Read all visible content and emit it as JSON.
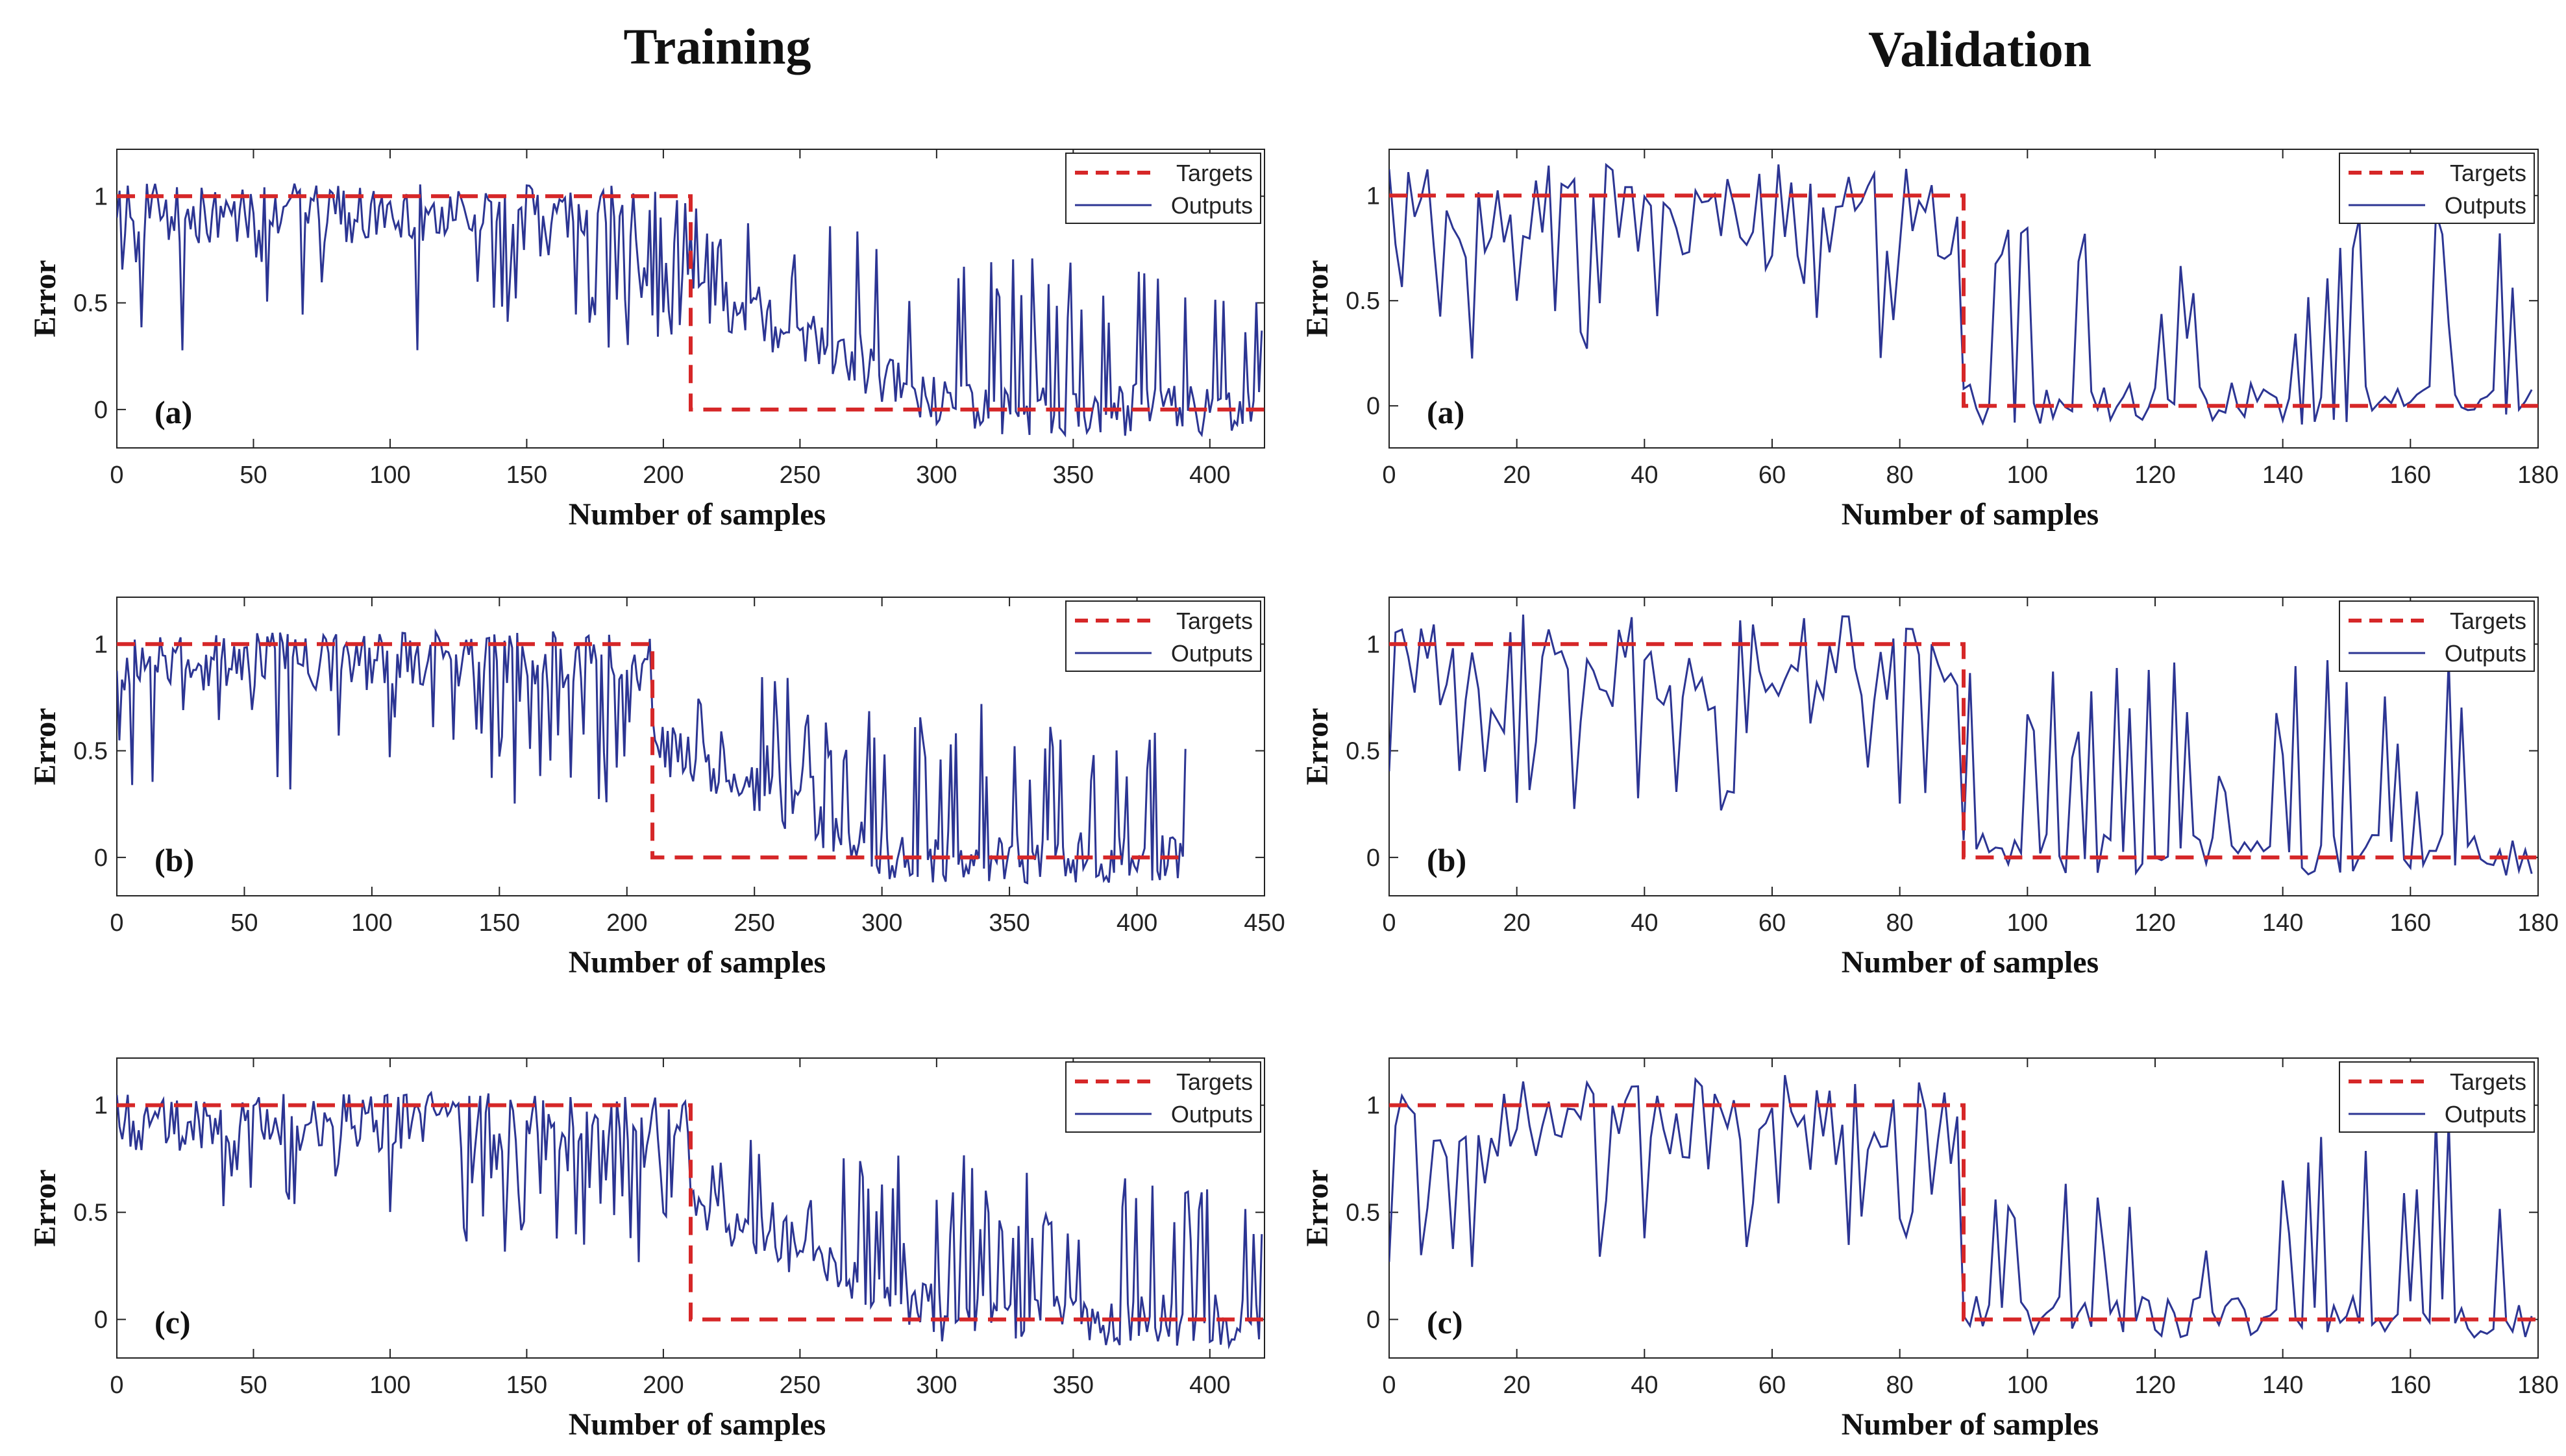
{
  "headers": {
    "training": "Training",
    "validation": "Validation"
  },
  "colors": {
    "target": "#d62728",
    "output": "#2c3593",
    "axis": "#222222",
    "bg": "#ffffff"
  },
  "legend": {
    "targets": "Targets",
    "outputs": "Outputs"
  },
  "chart_data": [
    {
      "type": "line",
      "column": "training",
      "row": 0,
      "panel_label": "(a)",
      "xlabel": "Number of samples",
      "ylabel": "Error",
      "xlim": [
        0,
        420
      ],
      "ylim": [
        -0.18,
        1.22
      ],
      "xticks": [
        0,
        50,
        100,
        150,
        200,
        250,
        300,
        350,
        400
      ],
      "yticks": [
        0,
        0.5,
        1
      ],
      "ytick_labels": [
        "0",
        "0.5",
        "1"
      ],
      "n": 420,
      "split": 210,
      "series": [
        {
          "name": "Targets",
          "description": "1 for samples 0-209, 0 for samples 210-419 (dashed)"
        },
        {
          "name": "Outputs",
          "description": "≈0.9 with dips to 0.3 for first class; spikes to ≈0.9 decaying to ≈0.0 for second class"
        }
      ]
    },
    {
      "type": "line",
      "column": "training",
      "row": 1,
      "panel_label": "(b)",
      "xlabel": "Number of samples",
      "ylabel": "Error",
      "xlim": [
        0,
        450
      ],
      "ylim": [
        -0.18,
        1.22
      ],
      "xticks": [
        0,
        50,
        100,
        150,
        200,
        250,
        300,
        350,
        400,
        450
      ],
      "yticks": [
        0,
        0.5,
        1
      ],
      "ytick_labels": [
        "0",
        "0.5",
        "1"
      ],
      "n": 420,
      "split": 210,
      "series": [
        {
          "name": "Targets",
          "description": "1 for samples 0-209, 0 for samples 210-419 (dashed)"
        },
        {
          "name": "Outputs",
          "description": "≈0.95 for first class; noisy ≈0.2 for second class"
        }
      ]
    },
    {
      "type": "line",
      "column": "training",
      "row": 2,
      "panel_label": "(c)",
      "xlabel": "Number of samples",
      "ylabel": "Error",
      "xlim": [
        0,
        420
      ],
      "ylim": [
        -0.18,
        1.22
      ],
      "xticks": [
        0,
        50,
        100,
        150,
        200,
        250,
        300,
        350,
        400
      ],
      "yticks": [
        0,
        0.5,
        1
      ],
      "ytick_labels": [
        "0",
        "0.5",
        "1"
      ],
      "n": 420,
      "split": 210,
      "series": [
        {
          "name": "Targets",
          "description": "1 for samples 0-209, 0 for samples 210-419 (dashed)"
        },
        {
          "name": "Outputs",
          "description": "≈0.9 for first class; noisy ≈0.2 for second class"
        }
      ]
    },
    {
      "type": "line",
      "column": "validation",
      "row": 0,
      "panel_label": "(a)",
      "xlabel": "Number of samples",
      "ylabel": "Error",
      "xlim": [
        0,
        180
      ],
      "ylim": [
        -0.2,
        1.22
      ],
      "xticks": [
        0,
        20,
        40,
        60,
        80,
        100,
        120,
        140,
        160,
        180
      ],
      "yticks": [
        0,
        0.5,
        1
      ],
      "ytick_labels": [
        "0",
        "0.5",
        "1"
      ],
      "n": 180,
      "split": 90,
      "series": [
        {
          "name": "Targets",
          "description": "1 for samples 0-89, 0 for samples 90-179 (dashed)"
        },
        {
          "name": "Outputs",
          "description": "≈0.75 oscillating 0.4-1.2 for first class; spikes to ≈0.9 around 0.0 for second class"
        }
      ]
    },
    {
      "type": "line",
      "column": "validation",
      "row": 1,
      "panel_label": "(b)",
      "xlabel": "Number of samples",
      "ylabel": "Error",
      "xlim": [
        0,
        180
      ],
      "ylim": [
        -0.18,
        1.22
      ],
      "xticks": [
        0,
        20,
        40,
        60,
        80,
        100,
        120,
        140,
        160,
        180
      ],
      "yticks": [
        0,
        0.5,
        1
      ],
      "ytick_labels": [
        "0",
        "0.5",
        "1"
      ],
      "n": 180,
      "split": 90,
      "series": [
        {
          "name": "Targets",
          "description": "1 for samples 0-89, 0 for samples 90-179 (dashed)"
        },
        {
          "name": "Outputs",
          "description": "≈0.85 for first class; spikes around 0.0-0.9 for second class"
        }
      ]
    },
    {
      "type": "line",
      "column": "validation",
      "row": 2,
      "panel_label": "(c)",
      "xlabel": "Number of samples",
      "ylabel": "Error",
      "xlim": [
        0,
        180
      ],
      "ylim": [
        -0.18,
        1.22
      ],
      "xticks": [
        0,
        20,
        40,
        60,
        80,
        100,
        120,
        140,
        160,
        180
      ],
      "yticks": [
        0,
        0.5,
        1
      ],
      "ytick_labels": [
        "0",
        "0.5",
        "1"
      ],
      "n": 180,
      "split": 90,
      "series": [
        {
          "name": "Targets",
          "description": "1 for samples 0-89, 0 for samples 90-179 (dashed)"
        },
        {
          "name": "Outputs",
          "description": "≈0.85 for first class; spikes around 0.0-0.9 for second class"
        }
      ]
    }
  ]
}
